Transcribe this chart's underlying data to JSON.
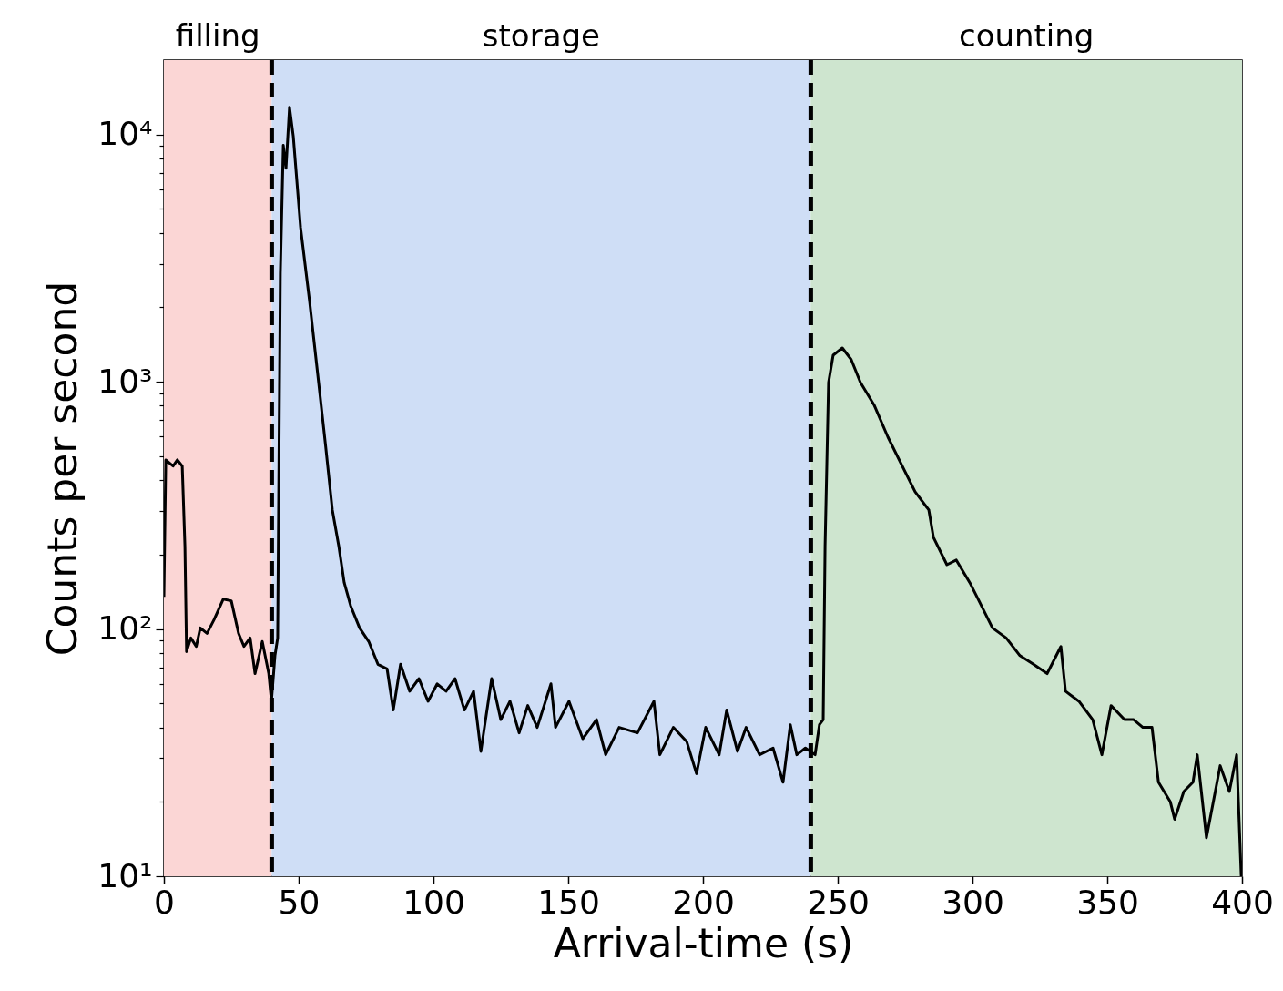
{
  "chart_data": {
    "type": "line",
    "xlabel": "Arrival-time (s)",
    "ylabel": "Counts per second",
    "log": true,
    "grid": false,
    "xlim": [
      0,
      400
    ],
    "xticks": [
      0,
      50,
      100,
      150,
      200,
      250,
      300,
      350,
      400
    ],
    "ylim": [
      10,
      20000
    ],
    "yticks": [
      {
        "value": 10,
        "label": "10¹"
      },
      {
        "value": 20,
        "label": null
      },
      {
        "value": 30,
        "label": null
      },
      {
        "value": 40,
        "label": null
      },
      {
        "value": 50,
        "label": null
      },
      {
        "value": 60,
        "label": null
      },
      {
        "value": 70,
        "label": null
      },
      {
        "value": 80,
        "label": null
      },
      {
        "value": 90,
        "label": null
      },
      {
        "value": 100,
        "label": "10²"
      },
      {
        "value": 200,
        "label": null
      },
      {
        "value": 300,
        "label": null
      },
      {
        "value": 400,
        "label": null
      },
      {
        "value": 500,
        "label": null
      },
      {
        "value": 600,
        "label": null
      },
      {
        "value": 700,
        "label": null
      },
      {
        "value": 800,
        "label": null
      },
      {
        "value": 900,
        "label": null
      },
      {
        "value": 1000,
        "label": "10³"
      },
      {
        "value": 2000,
        "label": null
      },
      {
        "value": 3000,
        "label": null
      },
      {
        "value": 4000,
        "label": null
      },
      {
        "value": 5000,
        "label": null
      },
      {
        "value": 6000,
        "label": null
      },
      {
        "value": 7000,
        "label": null
      },
      {
        "value": 8000,
        "label": null
      },
      {
        "value": 9000,
        "label": null
      },
      {
        "value": 10000,
        "label": "10⁴"
      }
    ],
    "bands": [
      {
        "axis": "x",
        "from": 0,
        "to": 40,
        "label": "filling",
        "color": "#fbd6d5"
      },
      {
        "axis": "x",
        "from": 40,
        "to": 240,
        "label": "storage",
        "color": "#cfdef6"
      },
      {
        "axis": "x",
        "from": 240,
        "to": 400,
        "label": "counting",
        "color": "#cee5cf"
      }
    ],
    "ref_lines": [
      {
        "axis": "x",
        "value": 40,
        "color": "#000000",
        "line_style": "dashed"
      },
      {
        "axis": "x",
        "value": 240,
        "color": "#000000",
        "line_style": "dashed"
      }
    ],
    "series": [
      {
        "color": "#000000",
        "line_style": "solid",
        "marker": "none",
        "x": [
          0,
          0.7,
          3.4,
          5,
          6.8,
          7.8,
          8.4,
          10,
          12,
          13.5,
          16,
          18.6,
          22,
          25,
          27.7,
          29.7,
          32,
          33.8,
          36.5,
          38.9,
          39.9,
          41.2,
          42.2,
          43.2,
          44.3,
          45.3,
          46.6,
          48,
          50.7,
          54,
          57.4,
          60,
          62.5,
          64.9,
          66.9,
          69.3,
          72.6,
          76,
          79.4,
          82.8,
          85.1,
          87.8,
          91.2,
          94.6,
          98,
          101.4,
          104.7,
          108,
          111.5,
          114.9,
          117.6,
          121.6,
          125,
          128.4,
          131.8,
          135,
          138.5,
          143.6,
          145.3,
          150.3,
          155.4,
          160.5,
          163.9,
          168.9,
          175.7,
          181.8,
          184,
          189,
          194,
          197.6,
          201,
          206,
          208.8,
          212.8,
          216,
          221,
          226,
          229.7,
          232.4,
          234.8,
          238,
          241.6,
          243.2,
          244.6,
          245.3,
          246.6,
          248.3,
          251.7,
          255,
          258.4,
          263.5,
          268.6,
          273.6,
          278.7,
          283.8,
          285.5,
          290.5,
          294,
          299,
          302.4,
          307.4,
          312.5,
          317.6,
          322.6,
          327.7,
          332.8,
          334.5,
          339.5,
          344.6,
          348,
          351.4,
          356.4,
          359.8,
          363.2,
          366.6,
          369,
          373.4,
          375,
          378.4,
          381.8,
          383.4,
          386.8,
          391.9,
          395.3,
          398,
          399.7
        ],
        "values": [
          135,
          483,
          456,
          483,
          456,
          216,
          81,
          92,
          85,
          101,
          96,
          109,
          132,
          130,
          96,
          85,
          92,
          66,
          89,
          66,
          51,
          78,
          92,
          2750,
          9040,
          7310,
          12900,
          9840,
          4210,
          2140,
          995,
          550,
          303,
          216,
          154,
          124,
          101,
          89,
          72,
          69,
          47,
          72,
          56,
          63,
          51,
          60,
          56,
          63,
          47,
          56,
          32,
          63,
          43,
          51,
          38,
          49,
          40,
          60,
          40,
          51,
          36,
          43,
          31,
          40,
          38,
          51,
          31,
          40,
          35,
          26,
          40,
          31,
          47,
          32,
          40,
          31,
          33,
          24,
          41,
          31,
          33,
          31,
          41,
          43,
          216,
          995,
          1280,
          1370,
          1230,
          995,
          805,
          598,
          464,
          359,
          303,
          235,
          182,
          190,
          154,
          130,
          101,
          92,
          78,
          72,
          66,
          85,
          56,
          51,
          43,
          31,
          49,
          43,
          43,
          40,
          40,
          24,
          20,
          17,
          22,
          24,
          31,
          14.3,
          28,
          22,
          31,
          10
        ]
      }
    ]
  }
}
